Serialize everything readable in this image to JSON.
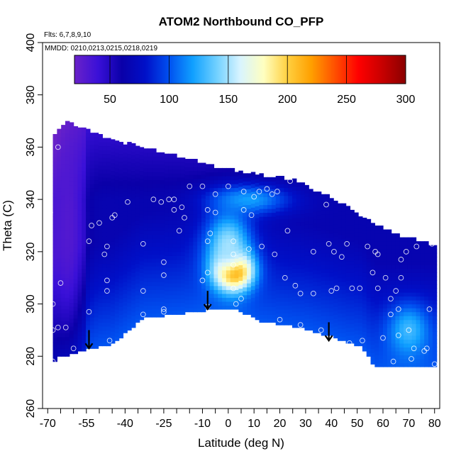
{
  "chart_data": {
    "type": "heatmap",
    "title": "ATOM2 Northbound CO_PFP",
    "notes": {
      "flights": "Flts: 6,7,8,9,10",
      "mmdd": "MMDD: 0210,0213,0215,0218,0219"
    },
    "xlabel": "Latitude (deg N)",
    "ylabel": "Theta (C)",
    "xlim": [
      -72,
      82
    ],
    "ylim": [
      260,
      400
    ],
    "xticks": [
      -70,
      -55,
      -40,
      -25,
      -10,
      0,
      10,
      20,
      30,
      40,
      50,
      60,
      70,
      80
    ],
    "xticks_minor": [
      -65,
      -60,
      -50,
      -45,
      -35,
      -30,
      -20,
      -15,
      -5,
      5,
      15,
      25,
      35,
      45,
      55,
      65,
      75
    ],
    "yticks": [
      260,
      280,
      300,
      320,
      340,
      360,
      380,
      400
    ],
    "colorbar": {
      "min": 20,
      "max": 300,
      "ticks": [
        50,
        100,
        150,
        200,
        250,
        300
      ],
      "colors": [
        "#6a22c8",
        "#3a10d8",
        "#0a00a8",
        "#0010c8",
        "#0050f0",
        "#10a0ff",
        "#70d0ff",
        "#d8f4ff",
        "#ffffc0",
        "#ffd040",
        "#ffa000",
        "#ff5000",
        "#ff0000",
        "#c80000",
        "#8a0000"
      ]
    },
    "tropopause_bottom": [
      {
        "lat": -68,
        "theta": 277
      },
      {
        "lat": -66,
        "theta": 280
      },
      {
        "lat": -55,
        "theta": 283
      },
      {
        "lat": -45,
        "theta": 285
      },
      {
        "lat": -33,
        "theta": 295
      },
      {
        "lat": -8,
        "theta": 298
      },
      {
        "lat": 2,
        "theta": 299
      },
      {
        "lat": 12,
        "theta": 294
      },
      {
        "lat": 30,
        "theta": 291
      },
      {
        "lat": 40,
        "theta": 288
      },
      {
        "lat": 52,
        "theta": 284
      },
      {
        "lat": 57,
        "theta": 276
      },
      {
        "lat": 80,
        "theta": 276
      }
    ],
    "top_boundary": [
      {
        "lat": -68,
        "theta": 363
      },
      {
        "lat": -63,
        "theta": 369
      },
      {
        "lat": -55,
        "theta": 366
      },
      {
        "lat": -45,
        "theta": 362
      },
      {
        "lat": -35,
        "theta": 360
      },
      {
        "lat": -20,
        "theta": 356
      },
      {
        "lat": -5,
        "theta": 352
      },
      {
        "lat": 10,
        "theta": 349
      },
      {
        "lat": 25,
        "theta": 347
      },
      {
        "lat": 40,
        "theta": 340
      },
      {
        "lat": 55,
        "theta": 331
      },
      {
        "lat": 65,
        "theta": 326
      },
      {
        "lat": 80,
        "theta": 322
      }
    ],
    "field_features": [
      {
        "lat": 2,
        "theta": 313,
        "value": 280,
        "spread_lat": 7,
        "spread_theta": 7
      },
      {
        "lat": 0,
        "theta": 322,
        "value": 150,
        "spread_lat": 9,
        "spread_theta": 14
      },
      {
        "lat": 8,
        "theta": 340,
        "value": 120,
        "spread_lat": 16,
        "spread_theta": 6
      },
      {
        "lat": 70,
        "theta": 290,
        "value": 130,
        "spread_lat": 8,
        "spread_theta": 10
      },
      {
        "lat": -62,
        "theta": 330,
        "value": 30,
        "spread_lat": 6,
        "spread_theta": 40
      }
    ],
    "arrows": [
      {
        "lat": -54,
        "theta_top": 290,
        "theta_bottom": 283
      },
      {
        "lat": -8,
        "theta_top": 305,
        "theta_bottom": 298
      },
      {
        "lat": 39,
        "theta_top": 293,
        "theta_bottom": 286
      }
    ],
    "sample_points": [
      {
        "lat": -69,
        "theta": 335
      },
      {
        "lat": -68,
        "theta": 300
      },
      {
        "lat": -68,
        "theta": 290
      },
      {
        "lat": -66,
        "theta": 291
      },
      {
        "lat": -63,
        "theta": 291
      },
      {
        "lat": -60,
        "theta": 283
      },
      {
        "lat": -68,
        "theta": 278
      },
      {
        "lat": -65,
        "theta": 308
      },
      {
        "lat": -66,
        "theta": 360
      },
      {
        "lat": -54,
        "theta": 324
      },
      {
        "lat": -53,
        "theta": 330
      },
      {
        "lat": -50,
        "theta": 331
      },
      {
        "lat": -47,
        "theta": 322
      },
      {
        "lat": -48,
        "theta": 319
      },
      {
        "lat": -45,
        "theta": 333
      },
      {
        "lat": -44,
        "theta": 334
      },
      {
        "lat": -47,
        "theta": 309
      },
      {
        "lat": -47,
        "theta": 305
      },
      {
        "lat": -54,
        "theta": 297
      },
      {
        "lat": -46,
        "theta": 286
      },
      {
        "lat": -39,
        "theta": 339
      },
      {
        "lat": -33,
        "theta": 323
      },
      {
        "lat": -33,
        "theta": 305
      },
      {
        "lat": -33,
        "theta": 296
      },
      {
        "lat": -25,
        "theta": 298
      },
      {
        "lat": -25,
        "theta": 297
      },
      {
        "lat": -29,
        "theta": 340
      },
      {
        "lat": -26,
        "theta": 339
      },
      {
        "lat": -23,
        "theta": 340
      },
      {
        "lat": -21,
        "theta": 340
      },
      {
        "lat": -21,
        "theta": 336
      },
      {
        "lat": -17,
        "theta": 333
      },
      {
        "lat": -18,
        "theta": 337
      },
      {
        "lat": -15,
        "theta": 345
      },
      {
        "lat": -19,
        "theta": 328
      },
      {
        "lat": -25,
        "theta": 316
      },
      {
        "lat": -25,
        "theta": 311
      },
      {
        "lat": -10,
        "theta": 345
      },
      {
        "lat": -8,
        "theta": 336
      },
      {
        "lat": -7,
        "theta": 327
      },
      {
        "lat": -8,
        "theta": 324
      },
      {
        "lat": -5,
        "theta": 342
      },
      {
        "lat": -5,
        "theta": 335
      },
      {
        "lat": -8,
        "theta": 312
      },
      {
        "lat": -10,
        "theta": 309
      },
      {
        "lat": -8,
        "theta": 299
      },
      {
        "lat": 0,
        "theta": 345
      },
      {
        "lat": 2,
        "theta": 324
      },
      {
        "lat": 2,
        "theta": 319
      },
      {
        "lat": 2,
        "theta": 315
      },
      {
        "lat": 5,
        "theta": 302
      },
      {
        "lat": 2,
        "theta": 306
      },
      {
        "lat": 3,
        "theta": 300
      },
      {
        "lat": 6,
        "theta": 343
      },
      {
        "lat": 6,
        "theta": 336
      },
      {
        "lat": 8,
        "theta": 321
      },
      {
        "lat": 9,
        "theta": 334
      },
      {
        "lat": 10,
        "theta": 341
      },
      {
        "lat": 12,
        "theta": 343
      },
      {
        "lat": 13,
        "theta": 322
      },
      {
        "lat": 15,
        "theta": 344
      },
      {
        "lat": 17,
        "theta": 342
      },
      {
        "lat": 19,
        "theta": 343
      },
      {
        "lat": 18,
        "theta": 319
      },
      {
        "lat": 22,
        "theta": 310
      },
      {
        "lat": 20,
        "theta": 294
      },
      {
        "lat": 23,
        "theta": 328
      },
      {
        "lat": 24,
        "theta": 347
      },
      {
        "lat": 28,
        "theta": 304
      },
      {
        "lat": 28,
        "theta": 292
      },
      {
        "lat": 26,
        "theta": 307
      },
      {
        "lat": 33,
        "theta": 320
      },
      {
        "lat": 33,
        "theta": 304
      },
      {
        "lat": 36,
        "theta": 290
      },
      {
        "lat": 38,
        "theta": 338
      },
      {
        "lat": 39,
        "theta": 323
      },
      {
        "lat": 41,
        "theta": 320
      },
      {
        "lat": 40,
        "theta": 305
      },
      {
        "lat": 42,
        "theta": 306
      },
      {
        "lat": 44,
        "theta": 318
      },
      {
        "lat": 46,
        "theta": 323
      },
      {
        "lat": 47,
        "theta": 285
      },
      {
        "lat": 48,
        "theta": 306
      },
      {
        "lat": 51,
        "theta": 306
      },
      {
        "lat": 52,
        "theta": 286
      },
      {
        "lat": 54,
        "theta": 322
      },
      {
        "lat": 56,
        "theta": 312
      },
      {
        "lat": 57,
        "theta": 320
      },
      {
        "lat": 58,
        "theta": 319
      },
      {
        "lat": 58,
        "theta": 306
      },
      {
        "lat": 61,
        "theta": 310
      },
      {
        "lat": 63,
        "theta": 302
      },
      {
        "lat": 63,
        "theta": 296
      },
      {
        "lat": 65,
        "theta": 305
      },
      {
        "lat": 66,
        "theta": 298
      },
      {
        "lat": 66,
        "theta": 288
      },
      {
        "lat": 67,
        "theta": 317
      },
      {
        "lat": 67,
        "theta": 310
      },
      {
        "lat": 69,
        "theta": 320
      },
      {
        "lat": 70,
        "theta": 290
      },
      {
        "lat": 71,
        "theta": 279
      },
      {
        "lat": 73,
        "theta": 322
      },
      {
        "lat": 72,
        "theta": 283
      },
      {
        "lat": 76,
        "theta": 282
      },
      {
        "lat": 77,
        "theta": 283
      },
      {
        "lat": 78,
        "theta": 298
      },
      {
        "lat": 79,
        "theta": 323
      },
      {
        "lat": 80,
        "theta": 277
      },
      {
        "lat": 64,
        "theta": 278
      },
      {
        "lat": 60,
        "theta": 287
      }
    ]
  }
}
